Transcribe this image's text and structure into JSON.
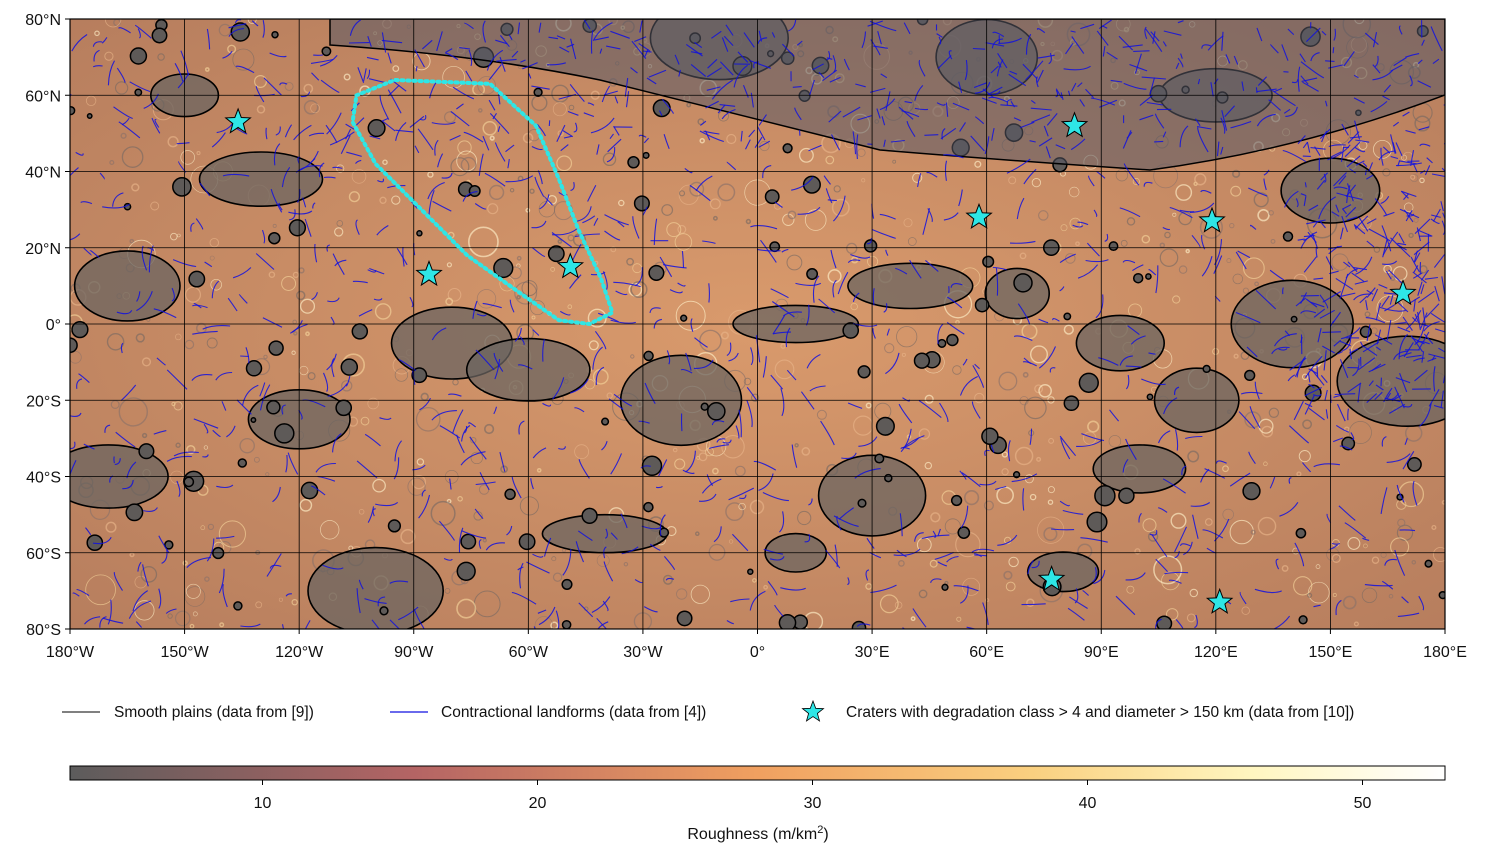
{
  "map": {
    "projection": "equirectangular",
    "lon_range": [
      -180,
      180
    ],
    "lat_range": [
      -80,
      80
    ],
    "grid_step_lon": 30,
    "grid_step_lat": 20,
    "lon_ticks": [
      "180°W",
      "150°W",
      "120°W",
      "90°W",
      "60°W",
      "30°W",
      "0°",
      "30°E",
      "60°E",
      "90°E",
      "120°E",
      "150°E",
      "180°E"
    ],
    "lat_ticks": [
      "80°N",
      "60°N",
      "40°N",
      "20°N",
      "0°",
      "20°S",
      "40°S",
      "60°S",
      "80°S"
    ],
    "smooth_plains_color": "#000000",
    "contractional_color": "#1010e0",
    "highlight_region_color": "#2ee6e6",
    "highlight_region": [
      [
        -105,
        60
      ],
      [
        -95,
        64
      ],
      [
        -70,
        63
      ],
      [
        -58,
        52
      ],
      [
        -52,
        38
      ],
      [
        -47,
        25
      ],
      [
        -41,
        12
      ],
      [
        -38,
        3
      ],
      [
        -44,
        0
      ],
      [
        -52,
        1
      ],
      [
        -62,
        8
      ],
      [
        -76,
        18
      ],
      [
        -88,
        30
      ],
      [
        -100,
        42
      ],
      [
        -106,
        53
      ]
    ],
    "craters": [
      {
        "lon": -136,
        "lat": 53
      },
      {
        "lon": -86,
        "lat": 13
      },
      {
        "lon": -49,
        "lat": 15
      },
      {
        "lon": 58,
        "lat": 28
      },
      {
        "lon": 83,
        "lat": 52
      },
      {
        "lon": 119,
        "lat": 27
      },
      {
        "lon": 169,
        "lat": 8
      },
      {
        "lon": 77,
        "lat": -67
      },
      {
        "lon": 121,
        "lat": -73
      }
    ],
    "star_color": "#2ee6e6"
  },
  "legend": {
    "items": [
      {
        "label": "Smooth plains (data from [9])",
        "type": "line",
        "color": "#000000"
      },
      {
        "label": "Contractional landforms (data from [4])",
        "type": "line",
        "color": "#1010e0"
      },
      {
        "label": "Craters with degradation class > 4 and diameter > 150 km (data from [10])",
        "type": "star",
        "color": "#2ee6e6"
      }
    ]
  },
  "colorbar": {
    "label": "Roughness (m/km",
    "label_sup": "2",
    "label_end": ")",
    "min": 3,
    "max": 53,
    "ticks": [
      "10",
      "20",
      "30",
      "40",
      "50"
    ],
    "tick_values": [
      10,
      20,
      30,
      40,
      50
    ],
    "colors": [
      "#5c5c5c",
      "#b46464",
      "#f0a060",
      "#fad080",
      "#fff6c0",
      "#ffffff"
    ]
  }
}
